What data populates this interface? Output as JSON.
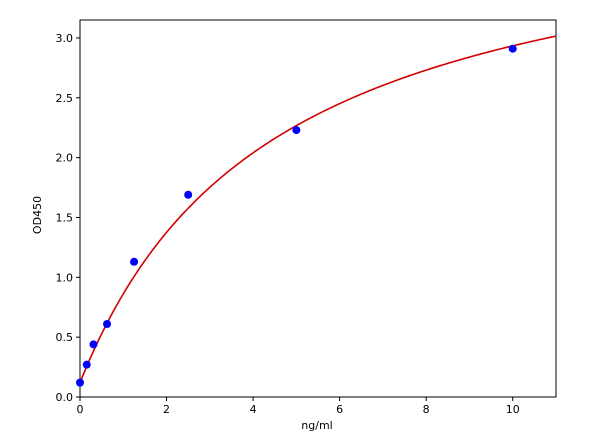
{
  "chart_data": {
    "type": "scatter",
    "xlabel": "ng/ml",
    "ylabel": "OD450",
    "xlim": [
      0,
      11
    ],
    "ylim": [
      0,
      3.15
    ],
    "xticks": [
      "0",
      "2",
      "4",
      "6",
      "8",
      "10"
    ],
    "yticks": [
      "0.0",
      "0.5",
      "1.0",
      "1.5",
      "2.0",
      "2.5",
      "3.0"
    ],
    "grid": false,
    "series": [
      {
        "kind": "points",
        "color": "#0000ff",
        "x": [
          0,
          0.156,
          0.3125,
          0.625,
          1.25,
          2.5,
          5,
          10
        ],
        "y": [
          0.12,
          0.27,
          0.44,
          0.61,
          1.13,
          1.69,
          2.23,
          2.91
        ]
      },
      {
        "kind": "fitted-curve",
        "color": "#d40000",
        "model": "4PL",
        "params": {
          "a": 0.12,
          "b": 1.0,
          "c": 4.5,
          "d": 4.2
        }
      }
    ]
  }
}
